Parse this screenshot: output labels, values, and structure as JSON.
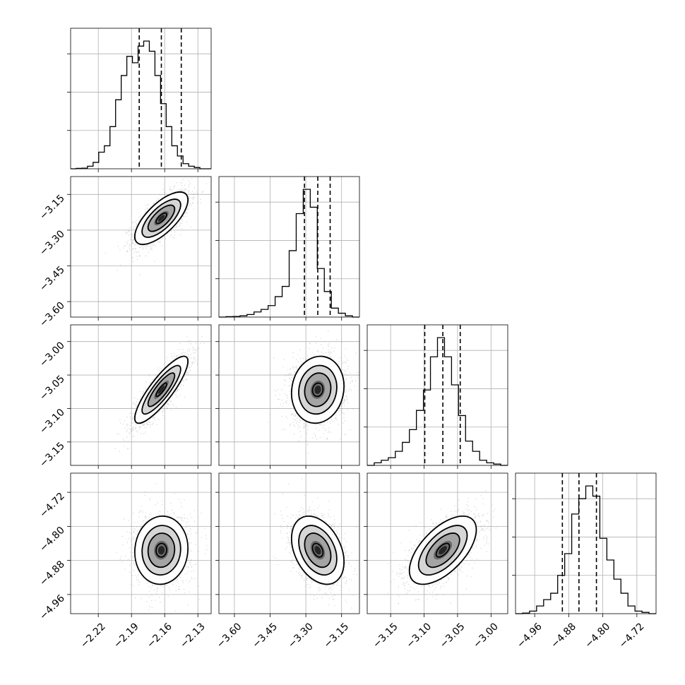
{
  "chart_data": {
    "type": "corner",
    "grid": true,
    "parameters": [
      {
        "range": [
          -2.245,
          -2.118
        ],
        "ticks": [
          -2.22,
          -2.19,
          -2.16,
          -2.13
        ],
        "tick_labels": [
          "−2.22",
          "−2.19",
          "−2.16",
          "−2.13"
        ],
        "quantiles": [
          -2.183,
          -2.163,
          -2.145
        ],
        "histogram": [
          0.0,
          0.003,
          0.005,
          0.02,
          0.05,
          0.13,
          0.18,
          0.33,
          0.54,
          0.73,
          0.88,
          0.83,
          0.96,
          1.0,
          0.92,
          0.73,
          0.51,
          0.33,
          0.18,
          0.1,
          0.04,
          0.02,
          0.01,
          0.0,
          0.0
        ],
        "hist_yticks": [
          0.3,
          0.6,
          0.9
        ]
      },
      {
        "range": [
          -3.665,
          -3.075
        ],
        "ticks": [
          -3.6,
          -3.45,
          -3.3,
          -3.15
        ],
        "tick_labels": [
          "−3.60",
          "−3.45",
          "−3.30",
          "−3.15"
        ],
        "quantiles": [
          -3.306,
          -3.25,
          -3.198
        ],
        "histogram": [
          0.0,
          0.003,
          0.005,
          0.01,
          0.02,
          0.04,
          0.06,
          0.09,
          0.16,
          0.24,
          0.52,
          0.81,
          1.0,
          0.86,
          0.38,
          0.2,
          0.07,
          0.03,
          0.01,
          0.0
        ],
        "hist_yticks": [
          0.3,
          0.6,
          0.9
        ]
      },
      {
        "range": [
          -3.185,
          -2.975
        ],
        "ticks": [
          -3.15,
          -3.1,
          -3.05,
          -3.0
        ],
        "tick_labels": [
          "−3.15",
          "−3.10",
          "−3.05",
          "−3.00"
        ],
        "quantiles": [
          -3.099,
          -3.072,
          -3.046
        ],
        "histogram": [
          0.0,
          0.02,
          0.04,
          0.06,
          0.11,
          0.18,
          0.28,
          0.43,
          0.59,
          0.85,
          1.0,
          0.85,
          0.63,
          0.39,
          0.19,
          0.11,
          0.04,
          0.02,
          0.01,
          0.0
        ],
        "hist_yticks": [
          0.3,
          0.6,
          0.9
        ]
      },
      {
        "range": [
          -5.005,
          -4.675
        ],
        "ticks": [
          -4.96,
          -4.88,
          -4.8,
          -4.72
        ],
        "tick_labels": [
          "−4.96",
          "−4.88",
          "−4.80",
          "−4.72"
        ],
        "quantiles": [
          -4.895,
          -4.856,
          -4.815
        ],
        "histogram": [
          0.0,
          0.005,
          0.02,
          0.06,
          0.11,
          0.16,
          0.3,
          0.47,
          0.78,
          0.9,
          1.0,
          0.92,
          0.59,
          0.42,
          0.27,
          0.16,
          0.06,
          0.02,
          0.01,
          0.0
        ],
        "hist_yticks": [
          0.3,
          0.6,
          0.9
        ]
      }
    ],
    "pairs": [
      {
        "x": 0,
        "y": 1,
        "center": [
          -2.163,
          -3.25
        ],
        "sigma": [
          0.012,
          0.055
        ],
        "correlation": 0.7
      },
      {
        "x": 0,
        "y": 2,
        "center": [
          -2.163,
          -3.072
        ],
        "sigma": [
          0.012,
          0.025
        ],
        "correlation": 0.85
      },
      {
        "x": 1,
        "y": 2,
        "center": [
          -3.25,
          -3.072
        ],
        "sigma": [
          0.055,
          0.025
        ],
        "correlation": 0.1
      },
      {
        "x": 0,
        "y": 3,
        "center": [
          -2.163,
          -4.856
        ],
        "sigma": [
          0.012,
          0.04
        ],
        "correlation": 0.05
      },
      {
        "x": 1,
        "y": 3,
        "center": [
          -3.25,
          -4.856
        ],
        "sigma": [
          0.055,
          0.04
        ],
        "correlation": -0.35
      },
      {
        "x": 2,
        "y": 3,
        "center": [
          -3.072,
          -4.856
        ],
        "sigma": [
          0.025,
          0.04
        ],
        "correlation": 0.6
      }
    ]
  }
}
